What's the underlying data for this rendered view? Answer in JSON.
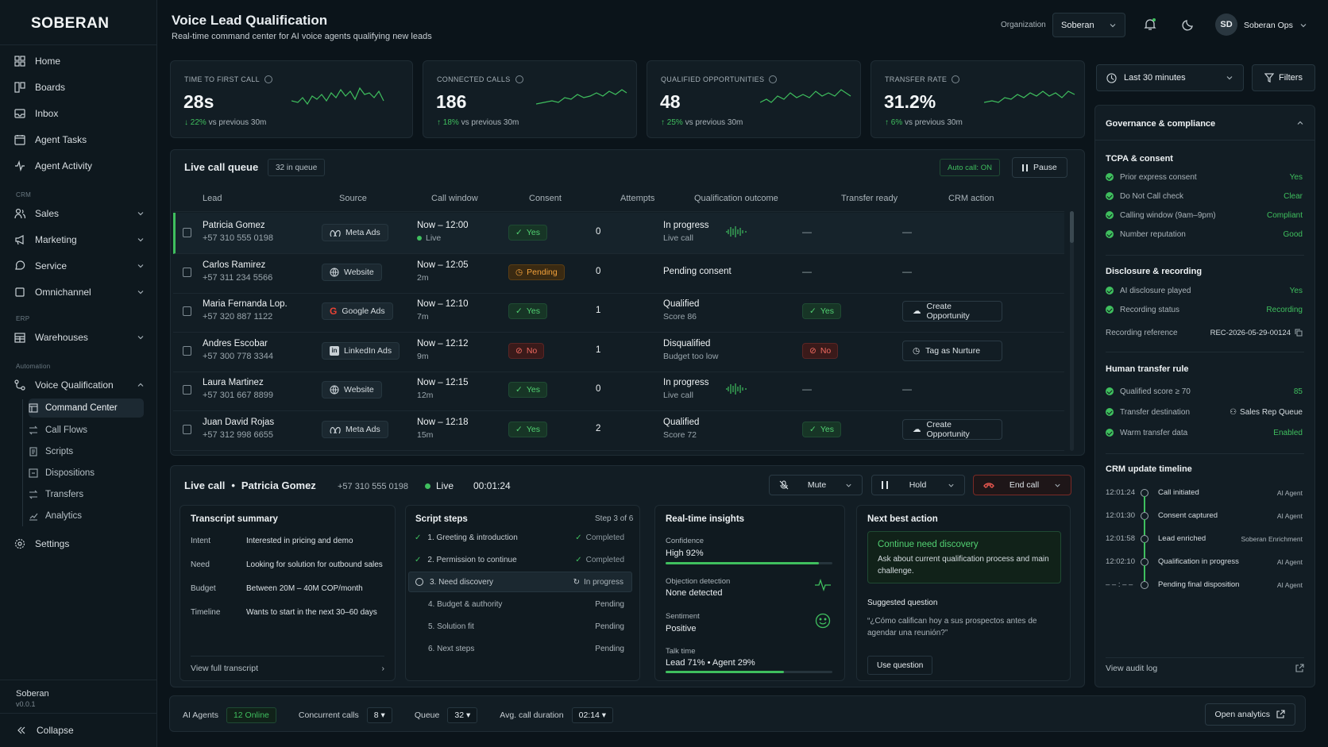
{
  "brand": "SOBERAN",
  "nav": {
    "home": "Home",
    "boards": "Boards",
    "inbox": "Inbox",
    "agent_tasks": "Agent Tasks",
    "agent_activity": "Agent Activity",
    "crm": "CRM",
    "sales": "Sales",
    "marketing": "Marketing",
    "service": "Service",
    "omnichannel": "Omnichannel",
    "erp": "ERP",
    "warehouses": "Warehouses",
    "automation": "Automation",
    "voice_qualification": "Voice Qualification",
    "sub": [
      "Command Center",
      "Call Flows",
      "Scripts",
      "Dispositions",
      "Transfers",
      "Analytics"
    ],
    "settings": "Settings"
  },
  "footer": {
    "org": "Soberan",
    "version": "v0.0.1",
    "collapse": "Collapse"
  },
  "header": {
    "title": "Voice Lead Qualification",
    "subtitle": "Real-time command center for AI voice agents qualifying new leads",
    "org_label": "Organization",
    "org_value": "Soberan",
    "avatar": "SD",
    "user": "Soberan Ops"
  },
  "kpis": [
    {
      "label": "TIME TO FIRST CALL",
      "value": "28s",
      "delta": "22%",
      "note": "vs previous 30m",
      "arrow": "↓"
    },
    {
      "label": "CONNECTED CALLS",
      "value": "186",
      "delta": "18%",
      "note": "vs previous 30m",
      "arrow": "↑"
    },
    {
      "label": "QUALIFIED OPPORTUNITIES",
      "value": "48",
      "delta": "25%",
      "note": "vs previous 30m",
      "arrow": "↑"
    },
    {
      "label": "TRANSFER RATE",
      "value": "31.2%",
      "delta": "6%",
      "note": "vs previous 30m",
      "arrow": "↑"
    }
  ],
  "queue": {
    "title": "Live call queue",
    "count": "32 in queue",
    "auto": "Auto call: ON",
    "pause": "Pause",
    "cols": [
      "Lead",
      "Source",
      "Call window",
      "Consent",
      "Attempts",
      "Qualification outcome",
      "Transfer ready",
      "CRM action"
    ],
    "rows": [
      {
        "name": "Patricia Gomez",
        "phone": "+57 310 555 0198",
        "source": "Meta Ads",
        "window": "Now – 12:00",
        "sub": "Live",
        "consent": "Yes",
        "attempts": "0",
        "outcome": "In progress",
        "outcome_sub": "Live call",
        "transfer": "—",
        "action": "—"
      },
      {
        "name": "Carlos Ramirez",
        "phone": "+57 311 234 5566",
        "source": "Website",
        "window": "Now – 12:05",
        "sub": "2m",
        "consent": "Pending",
        "attempts": "0",
        "outcome": "Pending consent",
        "outcome_sub": "",
        "transfer": "—",
        "action": "—"
      },
      {
        "name": "Maria Fernanda Lop.",
        "phone": "+57 320 887 1122",
        "source": "Google Ads",
        "window": "Now – 12:10",
        "sub": "7m",
        "consent": "Yes",
        "attempts": "1",
        "outcome": "Qualified",
        "outcome_sub": "Score 86",
        "transfer": "Yes",
        "action": "Create Opportunity"
      },
      {
        "name": "Andres Escobar",
        "phone": "+57 300 778 3344",
        "source": "LinkedIn Ads",
        "window": "Now – 12:12",
        "sub": "9m",
        "consent": "No",
        "attempts": "1",
        "outcome": "Disqualified",
        "outcome_sub": "Budget too low",
        "transfer": "No",
        "action": "Tag as Nurture"
      },
      {
        "name": "Laura Martinez",
        "phone": "+57 301 667 8899",
        "source": "Website",
        "window": "Now – 12:15",
        "sub": "12m",
        "consent": "Yes",
        "attempts": "0",
        "outcome": "In progress",
        "outcome_sub": "Live call",
        "transfer": "—",
        "action": "—"
      },
      {
        "name": "Juan David Rojas",
        "phone": "+57 312 998 6655",
        "source": "Meta Ads",
        "window": "Now – 12:18",
        "sub": "15m",
        "consent": "Yes",
        "attempts": "2",
        "outcome": "Qualified",
        "outcome_sub": "Score 72",
        "transfer": "Yes",
        "action": "Create Opportunity"
      }
    ]
  },
  "live": {
    "label": "Live call",
    "name": "Patricia Gomez",
    "phone": "+57 310 555 0198",
    "status": "Live",
    "timer": "00:01:24",
    "mute": "Mute",
    "hold": "Hold",
    "end": "End call"
  },
  "transcript": {
    "title": "Transcript summary",
    "rows": [
      [
        "Intent",
        "Interested in pricing and demo"
      ],
      [
        "Need",
        "Looking for solution for outbound sales"
      ],
      [
        "Budget",
        "Between 20M – 40M COP/month"
      ],
      [
        "Timeline",
        "Wants to start in the next 30–60 days"
      ]
    ],
    "link": "View full transcript"
  },
  "script": {
    "title": "Script steps",
    "step": "Step 3 of 6",
    "steps": [
      {
        "label": "1. Greeting & introduction",
        "status": "Completed"
      },
      {
        "label": "2. Permission to continue",
        "status": "Completed"
      },
      {
        "label": "3. Need discovery",
        "status": "In progress"
      },
      {
        "label": "4. Budget & authority",
        "status": "Pending"
      },
      {
        "label": "5. Solution fit",
        "status": "Pending"
      },
      {
        "label": "6. Next steps",
        "status": "Pending"
      }
    ]
  },
  "insights": {
    "title": "Real-time insights",
    "confidence_label": "Confidence",
    "confidence": "High  92%",
    "confidence_level": 0.92,
    "objection_label": "Objection detection",
    "objection": "None detected",
    "sentiment_label": "Sentiment",
    "sentiment": "Positive",
    "talk_label": "Talk time",
    "talk": "Lead 71% • Agent 29%",
    "talk_level": 0.71
  },
  "nba": {
    "title": "Next best action",
    "head": "Continue need discovery",
    "body": "Ask about current qualification process and main challenge.",
    "q_label": "Suggested question",
    "question": "“¿Cómo califican hoy a sus prospectos antes de agendar una reunión?”",
    "btn": "Use question"
  },
  "controls": {
    "time": "Last 30 minutes",
    "filters": "Filters"
  },
  "gov": {
    "title": "Governance & compliance",
    "tcpa": {
      "title": "TCPA & consent",
      "items": [
        [
          "Prior express consent",
          "Yes"
        ],
        [
          "Do Not Call check",
          "Clear"
        ],
        [
          "Calling window (9am–9pm)",
          "Compliant"
        ],
        [
          "Number reputation",
          "Good"
        ]
      ]
    },
    "disc": {
      "title": "Disclosure & recording",
      "items": [
        [
          "AI disclosure played",
          "Yes"
        ],
        [
          "Recording status",
          "Recording"
        ]
      ],
      "ref_label": "Recording reference",
      "ref": "REC-2026-05-29-00124"
    },
    "transfer": {
      "title": "Human transfer rule",
      "items": [
        [
          "Qualified score ≥ 70",
          "85"
        ],
        [
          "Transfer destination",
          "Sales Rep Queue"
        ],
        [
          "Warm transfer data",
          "Enabled"
        ]
      ]
    },
    "timeline": {
      "title": "CRM update timeline",
      "items": [
        [
          "12:01:24",
          "Call initiated",
          "AI Agent"
        ],
        [
          "12:01:30",
          "Consent captured",
          "AI Agent"
        ],
        [
          "12:01:58",
          "Lead enriched",
          "Soberan Enrichment"
        ],
        [
          "12:02:10",
          "Qualification in progress",
          "AI Agent"
        ],
        [
          "– – : – –",
          "Pending final disposition",
          "AI Agent"
        ]
      ]
    },
    "audit": "View audit log"
  },
  "bottom": {
    "agents_label": "AI Agents",
    "agents": "12 Online",
    "conc_label": "Concurrent calls",
    "conc": "8",
    "queue_label": "Queue",
    "queue": "32",
    "avg_label": "Avg. call duration",
    "avg": "02:14",
    "open": "Open analytics"
  }
}
